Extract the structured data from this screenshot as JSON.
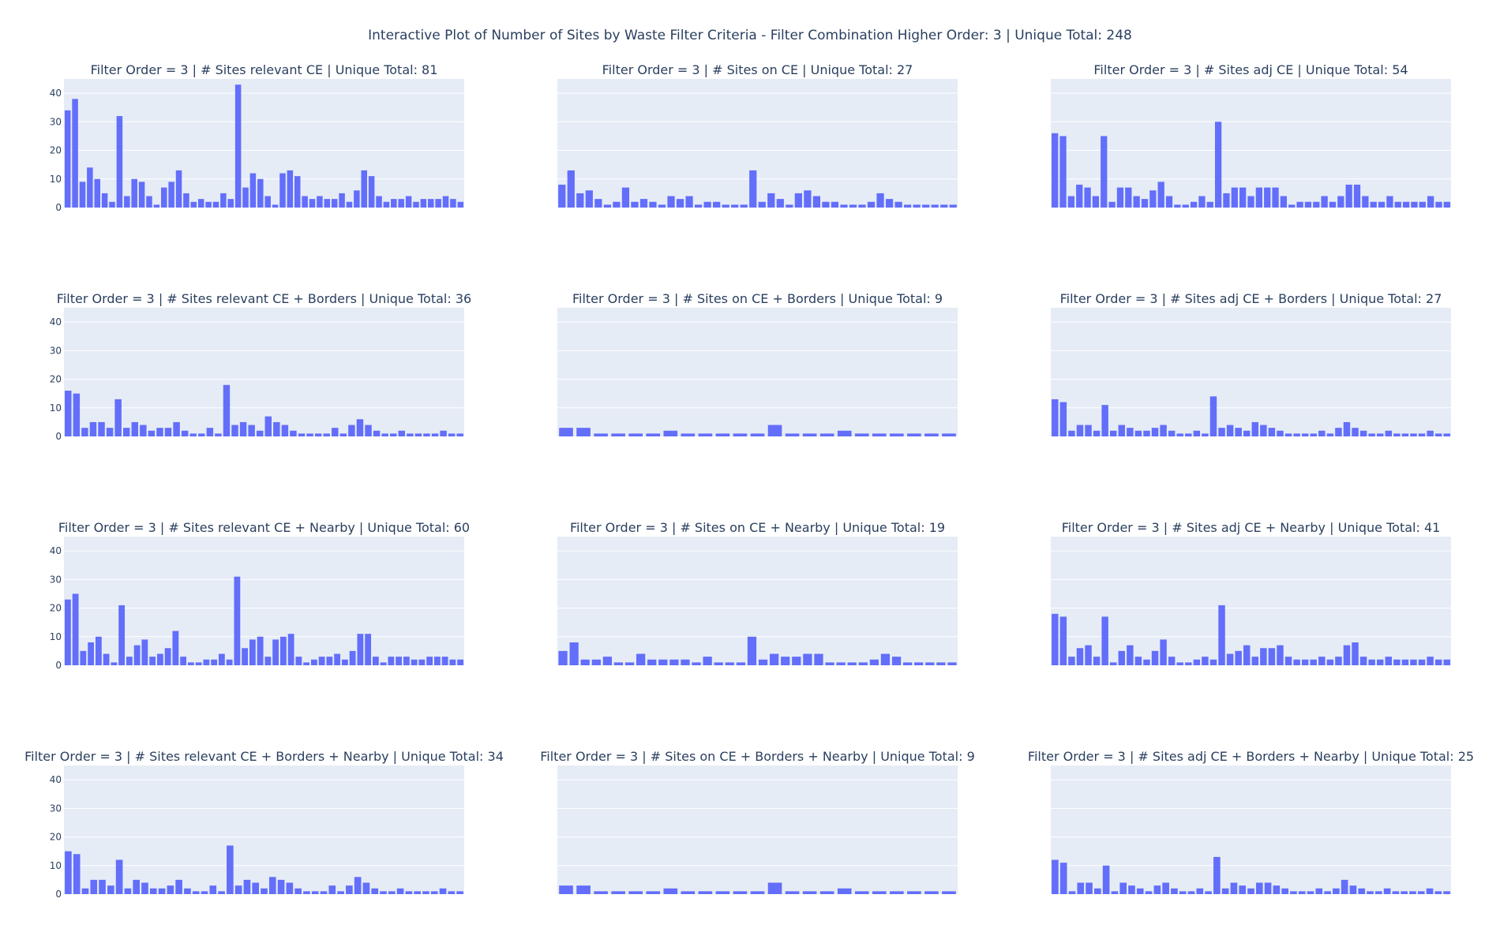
{
  "chart_data": {
    "type": "bar",
    "title": "Interactive Plot of Number of Sites by Waste Filter Criteria - Filter Combination Higher Order: 3 |  Unique Total: 248",
    "ylim": [
      0,
      45
    ],
    "yticks": [
      0,
      10,
      20,
      30,
      40
    ],
    "grid": true,
    "bar_color": "#636efa",
    "plot_bg_color": "#e5ecf6",
    "subplots": [
      {
        "title": "Filter Order = 3 | # Sites relevant CE | Unique Total: 81",
        "values": [
          34,
          38,
          9,
          14,
          10,
          5,
          2,
          32,
          4,
          10,
          9,
          4,
          1,
          7,
          9,
          13,
          5,
          2,
          3,
          2,
          2,
          5,
          3,
          43,
          7,
          12,
          10,
          4,
          1,
          12,
          13,
          11,
          4,
          3,
          4,
          3,
          3,
          5,
          2,
          6,
          13,
          11,
          4,
          2,
          3,
          3,
          4,
          2,
          3,
          3,
          3,
          4,
          3,
          2
        ]
      },
      {
        "title": "Filter Order = 3 | # Sites on CE | Unique Total: 27",
        "values": [
          8,
          13,
          5,
          6,
          3,
          1,
          2,
          7,
          2,
          3,
          2,
          1,
          4,
          3,
          4,
          1,
          2,
          2,
          1,
          1,
          1,
          13,
          2,
          5,
          3,
          1,
          5,
          6,
          4,
          2,
          2,
          1,
          1,
          1,
          2,
          5,
          3,
          2,
          1,
          1,
          1,
          1,
          1,
          1
        ]
      },
      {
        "title": "Filter Order = 3 | # Sites adj CE | Unique Total: 54",
        "values": [
          26,
          25,
          4,
          8,
          7,
          4,
          25,
          2,
          7,
          7,
          4,
          3,
          6,
          9,
          4,
          1,
          1,
          2,
          4,
          2,
          30,
          5,
          7,
          7,
          4,
          7,
          7,
          7,
          4,
          1,
          2,
          2,
          2,
          4,
          2,
          4,
          8,
          8,
          4,
          2,
          2,
          4,
          2,
          2,
          2,
          2,
          4,
          2,
          2
        ]
      },
      {
        "title": "Filter Order = 3 | # Sites relevant CE + Borders | Unique Total: 36",
        "values": [
          16,
          15,
          3,
          5,
          5,
          3,
          13,
          3,
          5,
          4,
          2,
          3,
          3,
          5,
          2,
          1,
          1,
          3,
          1,
          18,
          4,
          5,
          4,
          2,
          7,
          5,
          4,
          2,
          1,
          1,
          1,
          1,
          3,
          1,
          4,
          6,
          4,
          2,
          1,
          1,
          2,
          1,
          1,
          1,
          1,
          2,
          1,
          1
        ]
      },
      {
        "title": "Filter Order = 3 | # Sites on CE + Borders | Unique Total: 9",
        "values": [
          3,
          3,
          1,
          1,
          1,
          1,
          2,
          1,
          1,
          1,
          1,
          1,
          4,
          1,
          1,
          1,
          2,
          1,
          1,
          1,
          1,
          1,
          1
        ]
      },
      {
        "title": "Filter Order = 3 | # Sites adj CE + Borders | Unique Total: 27",
        "values": [
          13,
          12,
          2,
          4,
          4,
          2,
          11,
          2,
          4,
          3,
          2,
          2,
          3,
          4,
          2,
          1,
          1,
          2,
          1,
          14,
          3,
          4,
          3,
          2,
          5,
          4,
          3,
          2,
          1,
          1,
          1,
          1,
          2,
          1,
          3,
          5,
          3,
          2,
          1,
          1,
          2,
          1,
          1,
          1,
          1,
          2,
          1,
          1
        ]
      },
      {
        "title": "Filter Order = 3 | # Sites relevant CE + Nearby | Unique Total: 60",
        "values": [
          23,
          25,
          5,
          8,
          10,
          4,
          1,
          21,
          3,
          7,
          9,
          3,
          4,
          6,
          12,
          3,
          1,
          1,
          2,
          2,
          4,
          2,
          31,
          6,
          9,
          10,
          3,
          9,
          10,
          11,
          3,
          1,
          2,
          3,
          3,
          4,
          2,
          5,
          11,
          11,
          3,
          1,
          3,
          3,
          3,
          2,
          2,
          3,
          3,
          3,
          2,
          2
        ]
      },
      {
        "title": "Filter Order = 3 | # Sites on CE + Nearby | Unique Total: 19",
        "values": [
          5,
          8,
          2,
          2,
          3,
          1,
          1,
          4,
          2,
          2,
          2,
          2,
          1,
          3,
          1,
          1,
          1,
          10,
          2,
          4,
          3,
          3,
          4,
          4,
          1,
          1,
          1,
          1,
          2,
          4,
          3,
          1,
          1,
          1,
          1,
          1
        ]
      },
      {
        "title": "Filter Order = 3 | # Sites adj CE + Nearby | Unique Total: 41",
        "values": [
          18,
          17,
          3,
          6,
          7,
          3,
          17,
          1,
          5,
          7,
          3,
          2,
          5,
          9,
          3,
          1,
          1,
          2,
          3,
          2,
          21,
          4,
          5,
          7,
          3,
          6,
          6,
          7,
          3,
          2,
          2,
          2,
          3,
          2,
          3,
          7,
          8,
          3,
          2,
          2,
          3,
          2,
          2,
          2,
          2,
          3,
          2,
          2
        ]
      },
      {
        "title": "Filter Order = 3 | # Sites relevant CE + Borders + Nearby | Unique Total: 34",
        "values": [
          15,
          14,
          2,
          5,
          5,
          3,
          12,
          2,
          5,
          4,
          2,
          2,
          3,
          5,
          2,
          1,
          1,
          3,
          1,
          17,
          3,
          5,
          4,
          2,
          6,
          5,
          4,
          2,
          1,
          1,
          1,
          3,
          1,
          3,
          6,
          4,
          2,
          1,
          1,
          2,
          1,
          1,
          1,
          1,
          2,
          1,
          1
        ]
      },
      {
        "title": "Filter Order = 3 | # Sites on CE + Borders + Nearby | Unique Total: 9",
        "values": [
          3,
          3,
          1,
          1,
          1,
          1,
          2,
          1,
          1,
          1,
          1,
          1,
          4,
          1,
          1,
          1,
          2,
          1,
          1,
          1,
          1,
          1,
          1
        ]
      },
      {
        "title": "Filter Order = 3 | # Sites adj CE + Borders + Nearby | Unique Total: 25",
        "values": [
          12,
          11,
          1,
          4,
          4,
          2,
          10,
          1,
          4,
          3,
          2,
          1,
          3,
          4,
          2,
          1,
          1,
          2,
          1,
          13,
          2,
          4,
          3,
          2,
          4,
          4,
          3,
          2,
          1,
          1,
          1,
          2,
          1,
          2,
          5,
          3,
          2,
          1,
          1,
          2,
          1,
          1,
          1,
          1,
          2,
          1,
          1
        ]
      }
    ]
  }
}
